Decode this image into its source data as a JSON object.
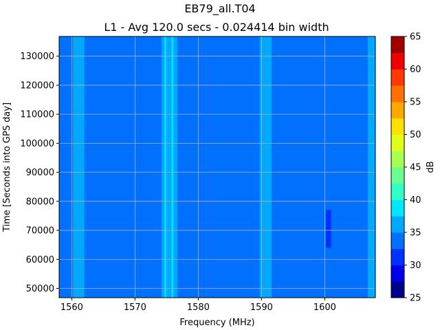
{
  "chart_data": {
    "type": "heatmap",
    "title": "EB79_all.T04",
    "subtitle": "L1 - Avg 120.0 secs - 0.024414 bin width",
    "xlabel": "Frequency (MHz)",
    "ylabel": "Time [Seconds into GPS day]",
    "colorbar_label": "dB",
    "xlim": [
      1558,
      1608
    ],
    "ylim": [
      46800,
      136800
    ],
    "xticks": [
      1560,
      1570,
      1580,
      1590,
      1600
    ],
    "yticks": [
      50000,
      60000,
      70000,
      80000,
      90000,
      100000,
      110000,
      120000,
      130000
    ],
    "grid": true,
    "colorbar": {
      "levels": [
        25,
        27.5,
        30,
        32.5,
        35,
        37.5,
        40,
        42.5,
        45,
        47.5,
        50,
        52.5,
        55,
        57.5,
        60,
        62.5,
        65
      ],
      "tick_values": [
        25,
        30,
        35,
        40,
        45,
        50,
        55,
        60,
        65
      ],
      "colors": [
        "#00008f",
        "#0000ed",
        "#0030ff",
        "#0070ff",
        "#00a8ff",
        "#00e8ff",
        "#30ffc8",
        "#68ff90",
        "#a8ff50",
        "#e0ff18",
        "#ffe000",
        "#ffa800",
        "#ff7000",
        "#ff3800",
        "#f00000",
        "#a00000"
      ]
    },
    "background_level_db": 33.7,
    "bands": [
      {
        "x_range": [
          1560.2,
          1562.0
        ],
        "level_db": 36.2
      },
      {
        "x_range": [
          1574.2,
          1576.7
        ],
        "level_db": 36.3
      },
      {
        "x_range": [
          1589.7,
          1591.6
        ],
        "level_db": 36.1
      },
      {
        "x_range": [
          1606.8,
          1608.0
        ],
        "level_db": 36.0
      }
    ],
    "bright_streaks": [
      {
        "x": 1574.8,
        "level_db": 38.8
      },
      {
        "x": 1575.9,
        "level_db": 38.8
      }
    ],
    "low_patches": [
      {
        "x_range": [
          1600.2,
          1601.0
        ],
        "y_range": [
          64000,
          77000
        ],
        "level_db": 31.2
      }
    ]
  }
}
